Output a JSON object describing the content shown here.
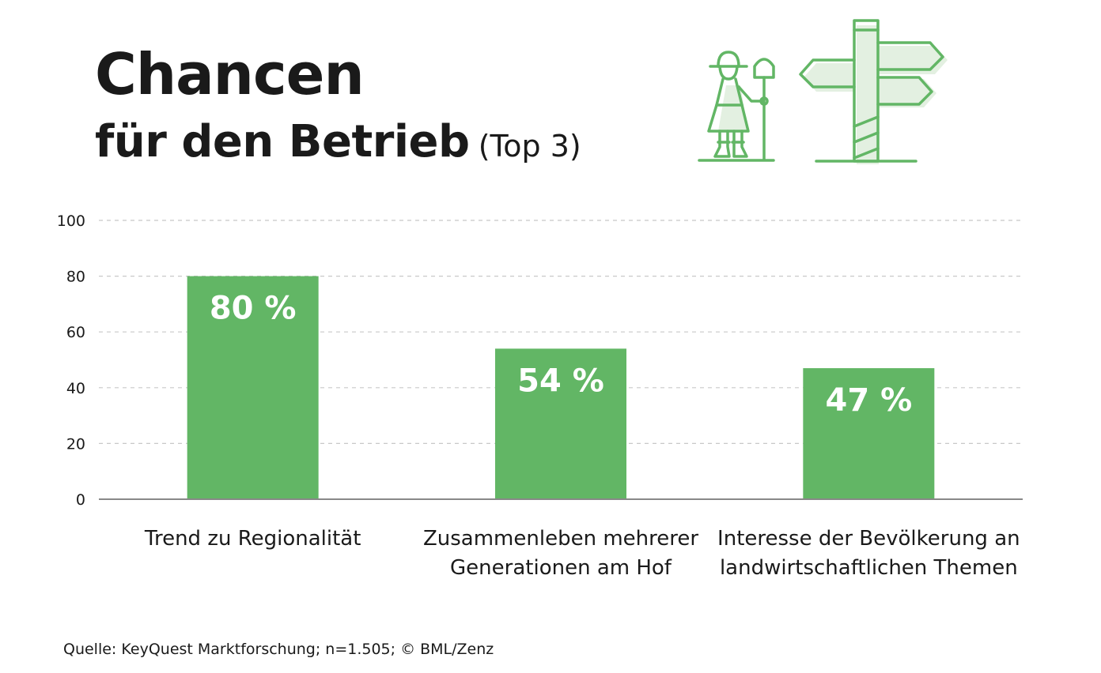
{
  "header": {
    "title": "Chancen",
    "subtitle": "für den Betrieb",
    "subtitle_note": "(Top 3)"
  },
  "chart_data": {
    "type": "bar",
    "title": "Chancen für den Betrieb (Top 3)",
    "categories": [
      [
        "Trend zu Regionalität"
      ],
      [
        "Zusammenleben mehrerer",
        "Generationen am Hof"
      ],
      [
        "Interesse der Bevölkerung an",
        "landwirtschaftlichen Themen"
      ]
    ],
    "values": [
      80,
      54,
      47
    ],
    "value_labels": [
      "80 %",
      "54 %",
      "47 %"
    ],
    "xlabel": "",
    "ylabel": "",
    "ylim": [
      0,
      100
    ],
    "yticks": [
      0,
      20,
      40,
      60,
      80,
      100
    ],
    "grid": true,
    "bar_color": "#62b665"
  },
  "footer": {
    "source": "Quelle: KeyQuest Marktforschung; n=1.505;  © BML/Zenz"
  },
  "icons": {
    "left": "farmer-with-shovel-icon",
    "right": "signpost-icon",
    "color": "#62b665",
    "fill": "#e3f0e1"
  }
}
